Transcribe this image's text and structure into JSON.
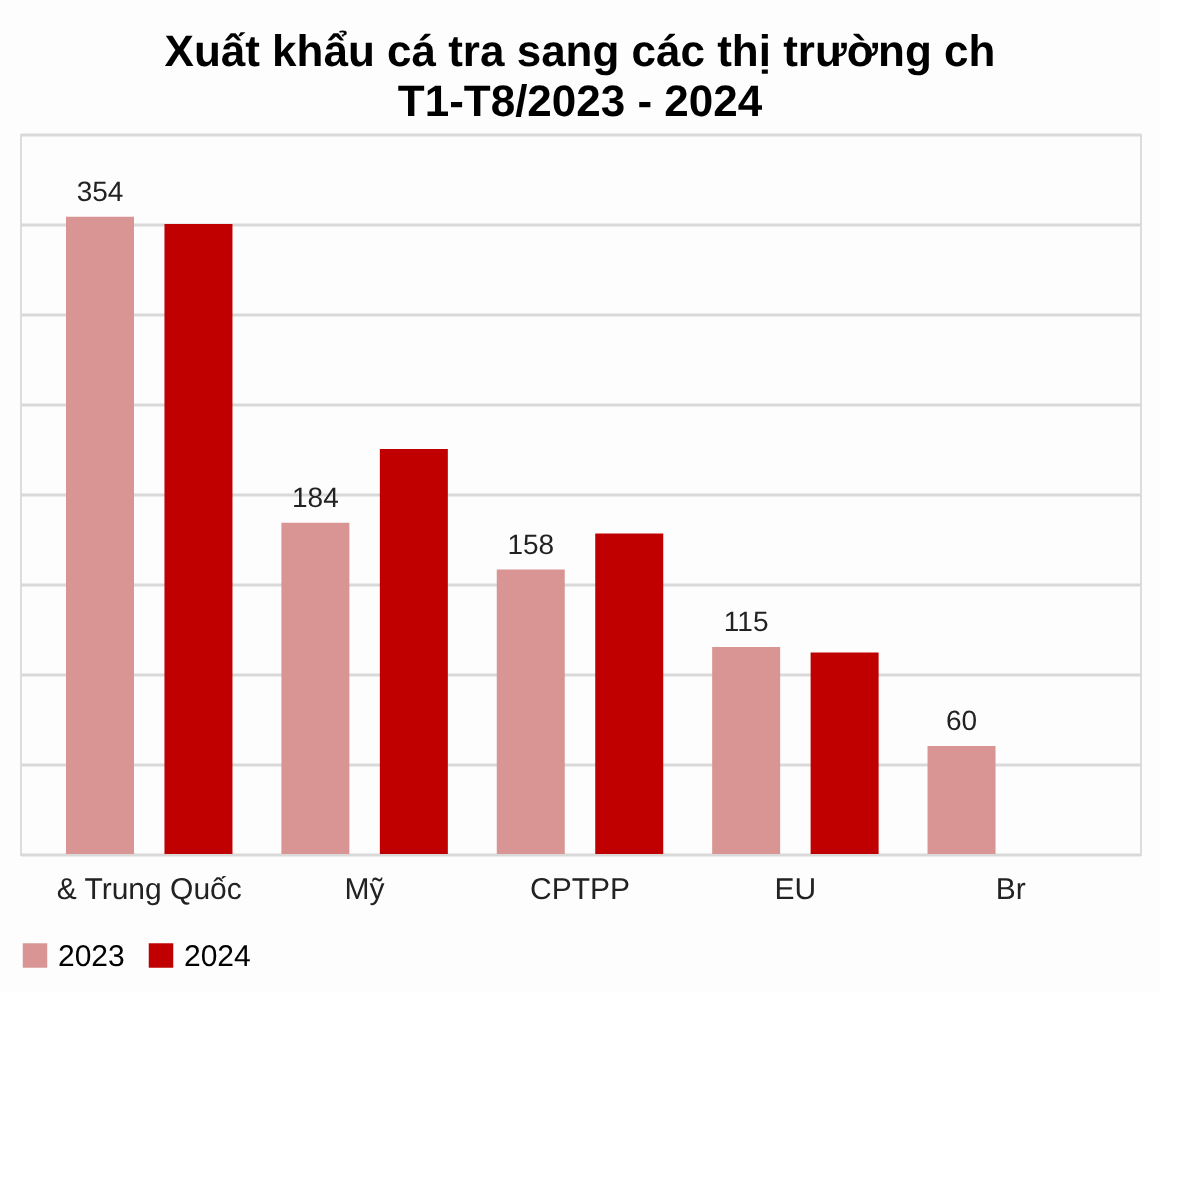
{
  "chart_data": {
    "type": "bar",
    "title": "Xuất khẩu cá tra sang các thị trường ch",
    "subtitle": "T1-T8/2023 - 2024",
    "categories": [
      "& Trung Quốc",
      "Mỹ",
      "CPTPP",
      "EU",
      "Br"
    ],
    "series": [
      {
        "name": "2023",
        "color": "#d99594",
        "values": [
          354,
          184,
          158,
          115,
          60
        ],
        "value_labels": [
          "354",
          "184",
          "158",
          "115",
          "60"
        ]
      },
      {
        "name": "2024",
        "color": "#c00000",
        "values": [
          350,
          225,
          178,
          112,
          null
        ]
      }
    ],
    "ylim": [
      0,
      400
    ],
    "yticks": [
      {
        "value": 0,
        "label": null
      },
      {
        "value": 50,
        "label": null
      },
      {
        "value": 100,
        "label": null
      },
      {
        "value": 150,
        "label": null
      },
      {
        "value": 200,
        "label": null
      },
      {
        "value": 250,
        "label": null
      },
      {
        "value": 300,
        "label": null
      },
      {
        "value": 350,
        "label": null
      },
      {
        "value": 400,
        "label": null
      }
    ],
    "tick_labels": "x",
    "grid": "y",
    "legend": "bottom"
  }
}
